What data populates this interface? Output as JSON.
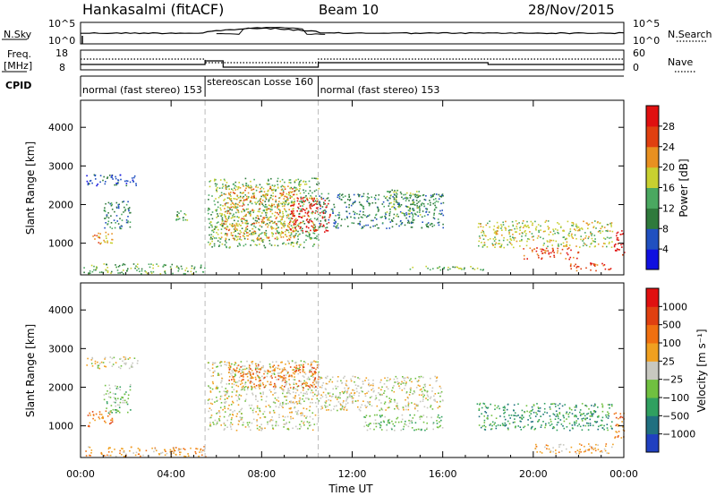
{
  "header": {
    "station": "Hankasalmi (fitACF)",
    "beam": "Beam 10",
    "date": "28/Nov/2015"
  },
  "top_panel": {
    "left_label": "N.Sky",
    "right_label": "N.Search",
    "left_ticks": [
      "10^5",
      "10^0"
    ],
    "right_ticks": [
      "10^5",
      "10^0"
    ]
  },
  "freq_panel": {
    "left_label_1": "Freq.",
    "left_label_2": "[MHz]",
    "right_label": "Nave",
    "left_ticks": [
      "18",
      "8"
    ],
    "right_ticks": [
      "60",
      "0"
    ]
  },
  "cpid": {
    "label": "CPID",
    "segments": [
      {
        "text": "normal (fast stereo) 153",
        "start_hour": 0,
        "end_hour": 5.5
      },
      {
        "text": "stereoscan Losse 160",
        "start_hour": 5.5,
        "end_hour": 10.5
      },
      {
        "text": "normal (fast stereo) 153",
        "start_hour": 10.5,
        "end_hour": 24
      }
    ]
  },
  "chart_data": [
    {
      "type": "heatmap",
      "title": "Power",
      "ylabel": "Slant Range [km]",
      "xlabel": "Time UT",
      "ylim": [
        180,
        4700
      ],
      "xlim": [
        0,
        24
      ],
      "y_ticks": [
        "1000",
        "2000",
        "3000",
        "4000"
      ],
      "x_ticks": [
        "00:00",
        "04:00",
        "08:00",
        "12:00",
        "16:00",
        "20:00",
        "00:00"
      ],
      "colorbar": {
        "label": "Power [dB]",
        "ticks": [
          "4",
          "8",
          "12",
          "16",
          "20",
          "24",
          "28"
        ],
        "colors": [
          "#1010e0",
          "#2050c0",
          "#2f7a3c",
          "#4aa860",
          "#c8d030",
          "#e89020",
          "#e04010",
          "#e01010"
        ]
      },
      "regions": [
        {
          "t0": 0.1,
          "t1": 5.5,
          "r0": 220,
          "r1": 480,
          "level": 3
        },
        {
          "t0": 0.3,
          "t1": 1.4,
          "r0": 1000,
          "r1": 1300,
          "level": 5
        },
        {
          "t0": 1.0,
          "t1": 2.2,
          "r0": 1350,
          "r1": 2100,
          "level": 2
        },
        {
          "t0": 0.2,
          "t1": 2.5,
          "r0": 2500,
          "r1": 2800,
          "level": 1
        },
        {
          "t0": 4.2,
          "t1": 4.7,
          "r0": 1600,
          "r1": 1850,
          "level": 3
        },
        {
          "t0": 5.6,
          "t1": 10.5,
          "r0": 900,
          "r1": 2700,
          "level": 3
        },
        {
          "t0": 6.2,
          "t1": 9.5,
          "r0": 1100,
          "r1": 2500,
          "level": 5
        },
        {
          "t0": 9.2,
          "t1": 11.0,
          "r0": 1300,
          "r1": 2200,
          "level": 7
        },
        {
          "t0": 10.5,
          "t1": 16.0,
          "r0": 1400,
          "r1": 2300,
          "level": 2
        },
        {
          "t0": 13.5,
          "t1": 15.0,
          "r0": 1700,
          "r1": 2400,
          "level": 3
        },
        {
          "t0": 17.5,
          "t1": 23.5,
          "r0": 900,
          "r1": 1600,
          "level": 4
        },
        {
          "t0": 19.5,
          "t1": 22.0,
          "r0": 600,
          "r1": 900,
          "level": 6
        },
        {
          "t0": 21.5,
          "t1": 23.5,
          "r0": 300,
          "r1": 500,
          "level": 6
        },
        {
          "t0": 23.5,
          "t1": 24.0,
          "r0": 700,
          "r1": 1400,
          "level": 7
        },
        {
          "t0": 14.5,
          "t1": 18.0,
          "r0": 300,
          "r1": 420,
          "level": 3
        }
      ]
    },
    {
      "type": "heatmap",
      "title": "Velocity",
      "ylabel": "Slant Range [km]",
      "xlabel": "Time UT",
      "ylim": [
        180,
        4700
      ],
      "xlim": [
        0,
        24
      ],
      "y_ticks": [
        "1000",
        "2000",
        "3000",
        "4000"
      ],
      "x_ticks": [
        "00:00",
        "04:00",
        "08:00",
        "12:00",
        "16:00",
        "20:00",
        "00:00"
      ],
      "colorbar": {
        "label": "Velocity [m s⁻¹]",
        "ticks": [
          "1000",
          "500",
          "100",
          "25",
          "−25",
          "−100",
          "−500",
          "−1000"
        ],
        "colors": [
          "#2040c0",
          "#207080",
          "#30a060",
          "#70c040",
          "#c8c8c0",
          "#f0a020",
          "#f07010",
          "#e04010",
          "#e01010"
        ]
      },
      "regions": [
        {
          "t0": 0.1,
          "t1": 5.5,
          "r0": 220,
          "r1": 480,
          "level": 5
        },
        {
          "t0": 0.3,
          "t1": 1.4,
          "r0": 1000,
          "r1": 1400,
          "level": 6
        },
        {
          "t0": 1.0,
          "t1": 2.2,
          "r0": 1350,
          "r1": 2100,
          "level": 3
        },
        {
          "t0": 0.2,
          "t1": 2.5,
          "r0": 2500,
          "r1": 2800,
          "level": 4
        },
        {
          "t0": 5.6,
          "t1": 10.5,
          "r0": 900,
          "r1": 2700,
          "level": 4
        },
        {
          "t0": 6.5,
          "t1": 10.5,
          "r0": 2000,
          "r1": 2600,
          "level": 6
        },
        {
          "t0": 10.5,
          "t1": 16.0,
          "r0": 1400,
          "r1": 2300,
          "level": 4
        },
        {
          "t0": 12.5,
          "t1": 16.0,
          "r0": 900,
          "r1": 1300,
          "level": 3
        },
        {
          "t0": 17.5,
          "t1": 23.5,
          "r0": 900,
          "r1": 1600,
          "level": 2
        },
        {
          "t0": 20.0,
          "t1": 23.5,
          "r0": 300,
          "r1": 550,
          "level": 5
        },
        {
          "t0": 23.5,
          "t1": 24.0,
          "r0": 700,
          "r1": 1400,
          "level": 6
        }
      ]
    }
  ]
}
